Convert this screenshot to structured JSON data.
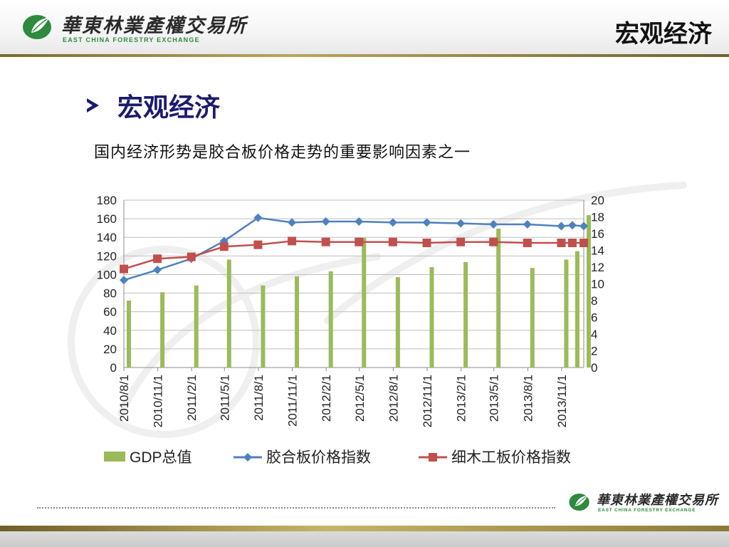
{
  "header": {
    "logo_cn": "華東林業產權交易所",
    "logo_en": "EAST CHINA FORESTRY EXCHANGE",
    "title": "宏观经济"
  },
  "section": {
    "title": "宏观经济",
    "subtitle": "国内经济形势是胶合板价格走势的重要影响因素之一"
  },
  "footer": {
    "logo_cn": "華東林業產權交易所",
    "logo_en": "EAST CHINA FORESTRY EXCHANGE"
  },
  "colors": {
    "bar": "#9bbb59",
    "line_plywood": "#4f81bd",
    "line_blockboard": "#c0504d",
    "title_navy": "#1b1b6e",
    "logo_green": "#2d8a3e"
  },
  "chart_data": {
    "type": "bar+line",
    "categories": [
      "2010/8/1",
      "2010/11/1",
      "2011/2/1",
      "2011/5/1",
      "2011/8/1",
      "2011/11/1",
      "2012/2/1",
      "2012/5/1",
      "2012/8/1",
      "2012/11/1",
      "2013/2/1",
      "2013/5/1",
      "2013/8/1",
      "2013/11/1"
    ],
    "x_start": "2010-08-01",
    "x_end": "2013-12-31",
    "y_left": {
      "min": 0,
      "max": 180,
      "ticks": [
        0,
        20,
        40,
        60,
        80,
        100,
        120,
        140,
        160,
        180
      ]
    },
    "y_right": {
      "min": 0,
      "max": 20,
      "ticks": [
        0,
        2,
        4,
        6,
        8,
        10,
        12,
        14,
        16,
        18,
        20
      ]
    },
    "grid": true,
    "legend_position": "bottom",
    "series": [
      {
        "name": "GDP总值",
        "type": "bar",
        "axis": "right",
        "x": [
          "2010-08-01",
          "2010-10-31",
          "2011-01-31",
          "2011-04-30",
          "2011-07-31",
          "2011-10-31",
          "2012-01-31",
          "2012-04-30",
          "2012-07-31",
          "2012-10-31",
          "2013-01-31",
          "2013-04-30",
          "2013-07-31",
          "2013-10-31",
          "2013-11-30",
          "2013-12-31"
        ],
        "values": [
          8.0,
          9.0,
          9.8,
          12.9,
          9.8,
          10.9,
          11.5,
          15.5,
          10.8,
          12.0,
          12.6,
          16.6,
          11.9,
          12.9,
          13.9,
          18.2
        ]
      },
      {
        "name": "胶合板价格指数",
        "type": "line",
        "axis": "left",
        "x": [
          "2010-08-01",
          "2010-10-31",
          "2011-01-31",
          "2011-04-30",
          "2011-07-31",
          "2011-10-31",
          "2012-01-31",
          "2012-04-30",
          "2012-07-31",
          "2012-10-31",
          "2013-01-31",
          "2013-04-30",
          "2013-07-31",
          "2013-10-31",
          "2013-11-30",
          "2013-12-31"
        ],
        "values": [
          94,
          105,
          117,
          136,
          161,
          156,
          157,
          157,
          156,
          156,
          155,
          154,
          154,
          152,
          153,
          152
        ]
      },
      {
        "name": "细木工板价格指数",
        "type": "line",
        "axis": "left",
        "x": [
          "2010-08-01",
          "2010-10-31",
          "2011-01-31",
          "2011-04-30",
          "2011-07-31",
          "2011-10-31",
          "2012-01-31",
          "2012-04-30",
          "2012-07-31",
          "2012-10-31",
          "2013-01-31",
          "2013-04-30",
          "2013-07-31",
          "2013-10-31",
          "2013-11-30",
          "2013-12-31"
        ],
        "values": [
          106,
          117,
          119,
          130,
          132,
          136,
          135,
          135,
          135,
          134,
          135,
          135,
          134,
          134,
          134,
          134
        ]
      }
    ]
  }
}
